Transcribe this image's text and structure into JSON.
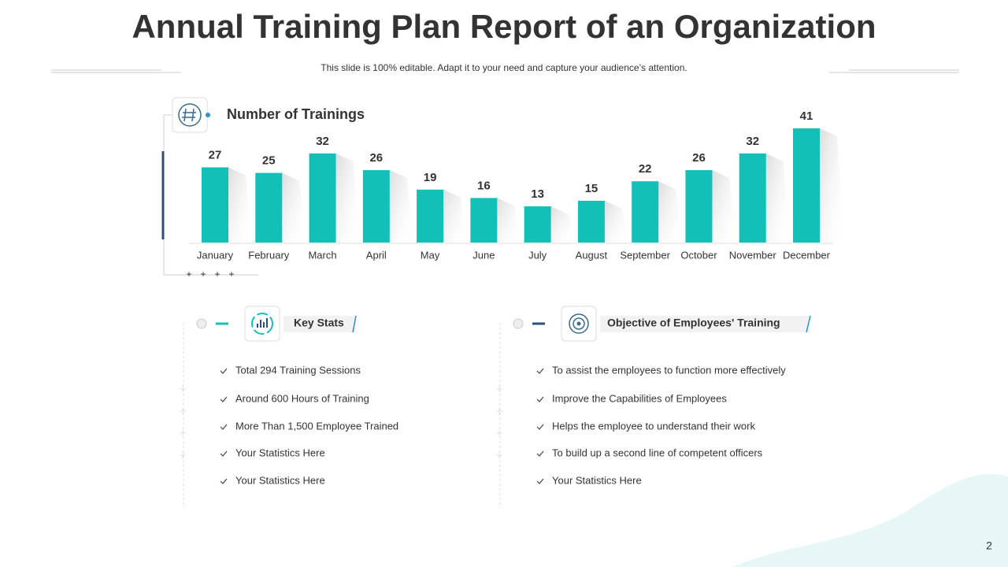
{
  "header": {
    "title": "Annual Training Plan Report of an Organization",
    "subtitle": "This slide is 100% editable. Adapt it to your need and capture your audience’s attention."
  },
  "chart_data": {
    "type": "bar",
    "title": "Number of Trainings",
    "categories": [
      "January",
      "February",
      "March",
      "April",
      "May",
      "June",
      "July",
      "August",
      "September",
      "October",
      "November",
      "December"
    ],
    "values": [
      27,
      25,
      32,
      26,
      19,
      16,
      13,
      15,
      22,
      26,
      32,
      41
    ],
    "color": "#13c0b8"
  },
  "key_stats": {
    "title": "Key Stats",
    "items": [
      "Total 294 Training Sessions",
      "Around 600 Hours of Training",
      "More Than  1,500 Employee Trained",
      "Your Statistics Here",
      "Your Statistics Here"
    ]
  },
  "objectives": {
    "title": "Objective of Employees' Training",
    "items": [
      "To assist the employees to function more effectively",
      "Improve  the Capabilities of Employees",
      "Helps the employee to understand their work",
      "To build up a second line of competent officers",
      "Your Statistics Here"
    ]
  },
  "page_number": "2"
}
